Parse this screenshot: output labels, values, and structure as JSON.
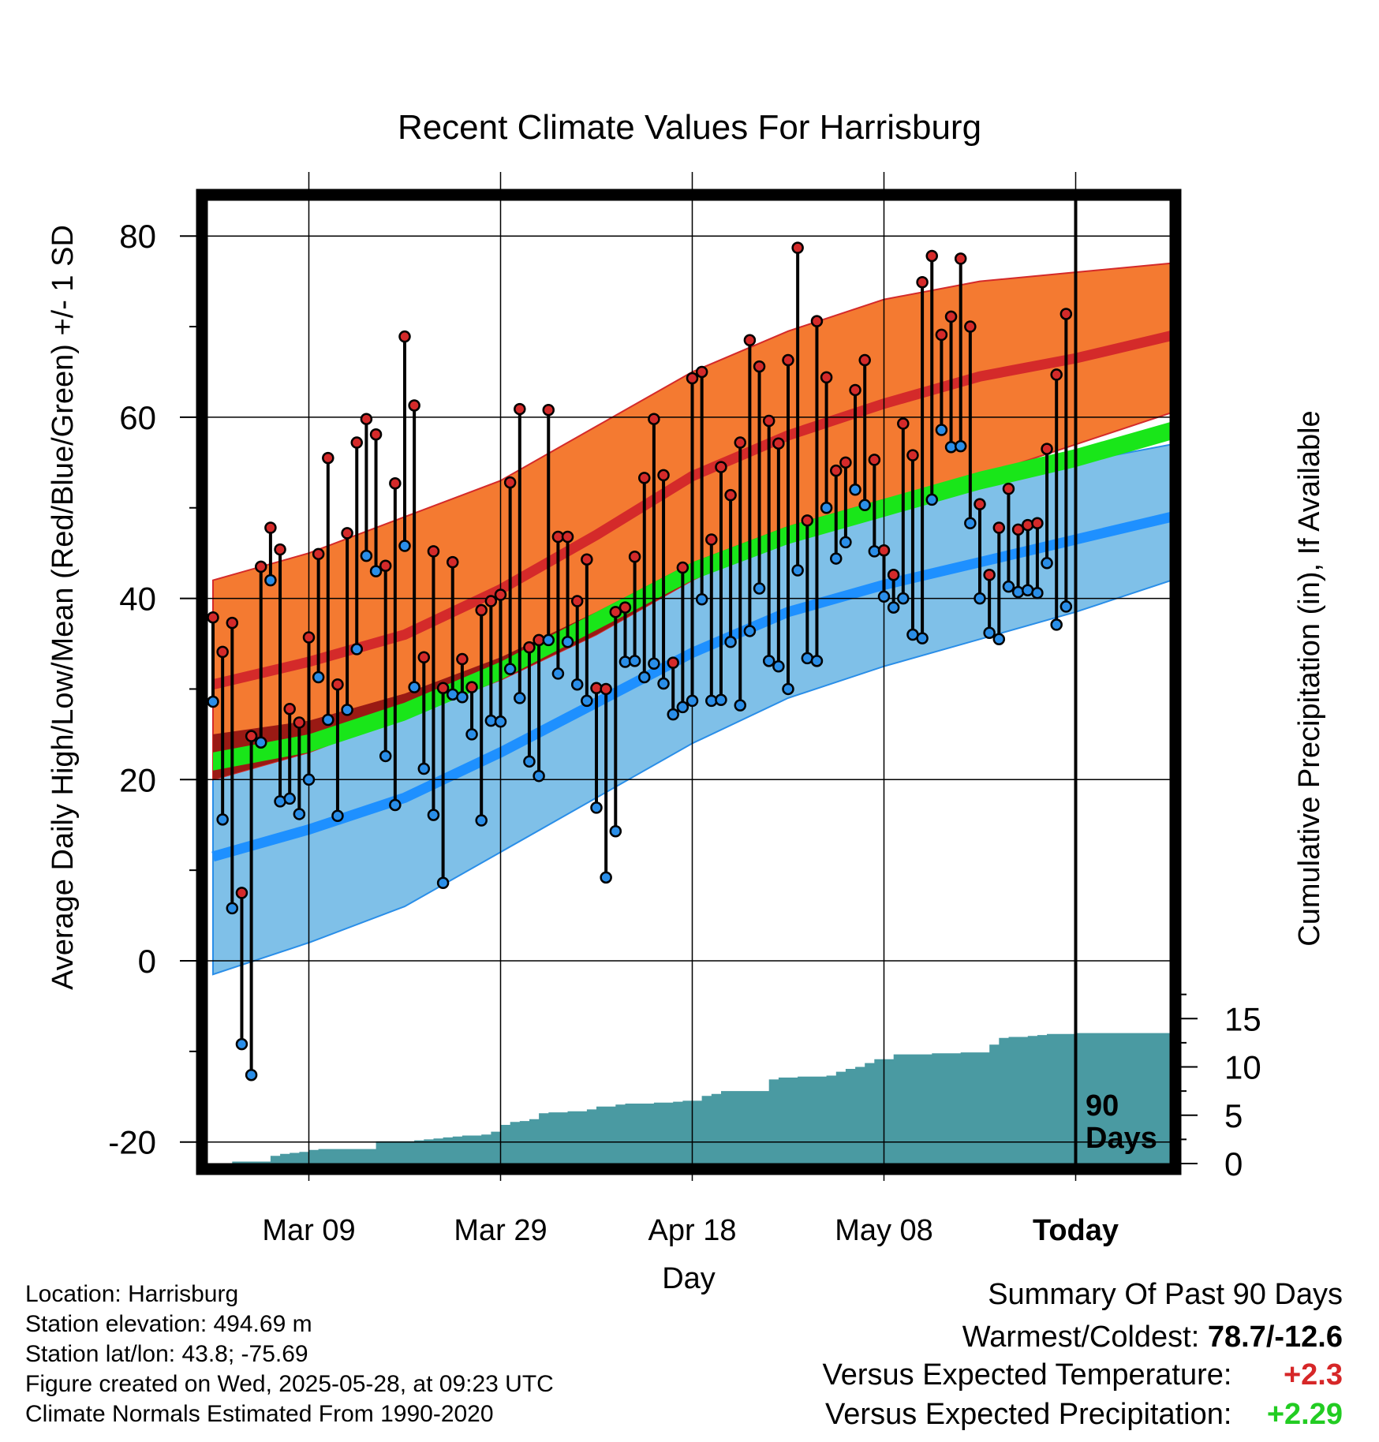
{
  "chart_data": {
    "type": "line",
    "title": "Recent Climate Values For Harrisburg",
    "xlabel": "Day",
    "ylabel": "Average Daily High/Low/Mean (Red/Blue/Green) +/- 1 SD",
    "y2label": "Cumulative Precipitation (in), If Available",
    "ylim": [
      -22,
      88
    ],
    "y2lim": [
      0,
      30
    ],
    "y_ticks": [
      "-20",
      "0",
      "20",
      "40",
      "60",
      "80"
    ],
    "y2_ticks": [
      "0",
      "5",
      "10",
      "15"
    ],
    "x_tick_labels": [
      "Mar 09",
      "Mar 29",
      "Apr 18",
      "May 08",
      "Today"
    ],
    "x_tick_days": [
      10,
      30,
      50,
      70,
      90
    ],
    "today_marker": {
      "day": 90,
      "label_line1": "90",
      "label_line2": "Days"
    },
    "grid": true,
    "normals_days": [
      0,
      10,
      20,
      30,
      40,
      50,
      60,
      70,
      80,
      90,
      100
    ],
    "normal_high_mean": [
      30.5,
      33,
      36,
      41,
      47,
      53.5,
      58,
      61.5,
      64.5,
      66.5,
      69
    ],
    "normal_high_upper": [
      42,
      45,
      49,
      53,
      59,
      65,
      69.5,
      73,
      75,
      76,
      77
    ],
    "normal_high_lower": [
      20,
      23,
      27,
      31,
      36,
      42,
      47,
      50,
      53.5,
      57,
      60.5
    ],
    "normal_low_mean": [
      11.5,
      14.5,
      18,
      23,
      28.5,
      34,
      38.5,
      41.5,
      44,
      46.5,
      49
    ],
    "normal_low_upper": [
      25,
      26.5,
      29.5,
      33.5,
      38.5,
      44,
      48,
      51,
      53,
      55,
      57
    ],
    "normal_low_lower": [
      -1.5,
      2,
      6,
      12,
      18,
      24,
      29,
      32.5,
      35.5,
      38.5,
      42
    ],
    "normal_mean_upper": [
      23,
      25,
      28.5,
      33,
      38.5,
      44,
      48,
      51,
      54,
      56.5,
      59.5
    ],
    "normal_mean_lower": [
      21,
      23,
      26.5,
      31,
      36.5,
      42,
      46,
      49,
      52,
      54.5,
      57.5
    ],
    "series": [
      {
        "name": "High",
        "values": [
          37.9,
          34.1,
          37.3,
          7.5,
          24.8,
          43.5,
          47.8,
          45.4,
          27.8,
          26.3,
          35.7,
          44.9,
          55.5,
          30.5,
          47.2,
          57.2,
          59.8,
          58.1,
          43.6,
          52.7,
          68.9,
          61.3,
          33.5,
          45.2,
          30.1,
          44.0,
          33.3,
          30.2,
          38.7,
          39.7,
          40.4,
          52.8,
          60.9,
          34.6,
          35.4,
          60.8,
          46.8,
          46.8,
          39.7,
          44.3,
          30.1,
          30.0,
          38.5,
          39.0,
          44.6,
          53.3,
          59.8,
          53.6,
          32.9,
          43.4,
          64.3,
          65.0,
          46.5,
          54.5,
          51.4,
          57.2,
          68.5,
          65.6,
          59.6,
          57.1,
          66.3,
          78.7,
          48.6,
          70.6,
          64.4,
          54.1,
          55.0,
          63.0,
          66.3,
          55.3,
          45.3,
          42.6,
          59.3,
          55.8,
          74.9,
          77.8,
          69.1,
          71.1,
          77.5,
          70.0,
          50.4,
          42.6,
          47.8,
          52.1,
          47.6,
          48.1,
          48.3,
          56.5,
          64.7,
          71.4
        ]
      },
      {
        "name": "Low",
        "values": [
          28.6,
          15.6,
          5.8,
          -9.2,
          -12.6,
          24.1,
          42.0,
          17.6,
          17.9,
          16.2,
          20.0,
          31.3,
          26.6,
          16.0,
          27.7,
          34.4,
          44.7,
          43.0,
          22.6,
          17.2,
          45.8,
          30.2,
          21.2,
          16.1,
          8.6,
          29.4,
          29.1,
          25.0,
          15.5,
          26.5,
          26.4,
          32.2,
          29.0,
          22.0,
          20.4,
          35.4,
          31.7,
          35.2,
          30.5,
          28.7,
          16.9,
          9.2,
          14.3,
          33.0,
          33.1,
          31.3,
          32.8,
          30.6,
          27.2,
          28.0,
          28.7,
          39.9,
          28.7,
          28.8,
          35.2,
          28.2,
          36.4,
          41.1,
          33.1,
          32.5,
          30.0,
          43.1,
          33.4,
          33.1,
          50.0,
          44.4,
          46.2,
          52.0,
          50.3,
          45.2,
          40.2,
          39.0,
          40.0,
          36.0,
          35.6,
          50.9,
          58.6,
          56.7,
          56.8,
          48.3,
          40.0,
          36.2,
          35.5,
          41.3,
          40.7,
          40.9,
          40.6,
          43.9,
          37.1,
          39.1
        ]
      },
      {
        "name": "Precipitation",
        "days": [
          0,
          2,
          5,
          6,
          7,
          8,
          9,
          10,
          11,
          12,
          16,
          17,
          20,
          21,
          22,
          23,
          24,
          25,
          26,
          28,
          29,
          30,
          31,
          32,
          33,
          34,
          35,
          37,
          39,
          40,
          41,
          42,
          43,
          44,
          46,
          48,
          49,
          51,
          52,
          53,
          54,
          55,
          57,
          58,
          59,
          60,
          61,
          62,
          64,
          65,
          66,
          67,
          68,
          69,
          70,
          71,
          72,
          73,
          74,
          75,
          76,
          78,
          80,
          81,
          82,
          83,
          84,
          85,
          86,
          87,
          90,
          92,
          94,
          96,
          98,
          100
        ],
        "values": [
          0,
          0.2,
          0.2,
          0.8,
          1.0,
          1.1,
          1.2,
          1.4,
          1.5,
          1.5,
          1.5,
          2.3,
          2.3,
          2.4,
          2.5,
          2.6,
          2.7,
          2.8,
          2.9,
          3.0,
          3.3,
          4.0,
          4.3,
          4.4,
          4.6,
          5.2,
          5.3,
          5.4,
          5.6,
          5.9,
          5.9,
          6.1,
          6.2,
          6.2,
          6.3,
          6.4,
          6.5,
          7.0,
          7.2,
          7.5,
          7.5,
          7.5,
          7.5,
          8.7,
          8.9,
          8.9,
          9.0,
          9.0,
          9.1,
          9.5,
          9.8,
          10.0,
          10.4,
          10.8,
          10.8,
          11.3,
          11.3,
          11.3,
          11.3,
          11.4,
          11.4,
          11.5,
          11.5,
          12.3,
          13.0,
          13.1,
          13.1,
          13.2,
          13.3,
          13.4,
          13.5,
          13.5,
          13.5,
          13.5,
          13.5,
          13.5
        ]
      }
    ],
    "colors": {
      "high_band": "#f47a31",
      "high_line": "#d42a2a",
      "low_band": "#7fc0e8",
      "low_line": "#1e90ff",
      "mean_band": "#19e619",
      "overlap": "#9a1a14",
      "precip": "#4a9aa2",
      "high_dot": "#d42a2a",
      "low_dot": "#2a8ee8"
    }
  },
  "info": {
    "location": "Location: Harrisburg",
    "elevation": "Station elevation: 494.69 m",
    "latlon": "Station lat/lon: 43.8; -75.69",
    "created": "Figure created on Wed, 2025-05-28, at 09:23 UTC",
    "normals": "Climate Normals Estimated From 1990-2020"
  },
  "summary": {
    "title": "Summary Of Past 90 Days",
    "warm_cold_label": "Warmest/Coldest: ",
    "warm_cold_value": "78.7/-12.6",
    "temp_label": "Versus Expected Temperature:",
    "temp_value": "+2.3",
    "precip_label": "Versus Expected Precipitation:",
    "precip_value": "+2.29"
  }
}
